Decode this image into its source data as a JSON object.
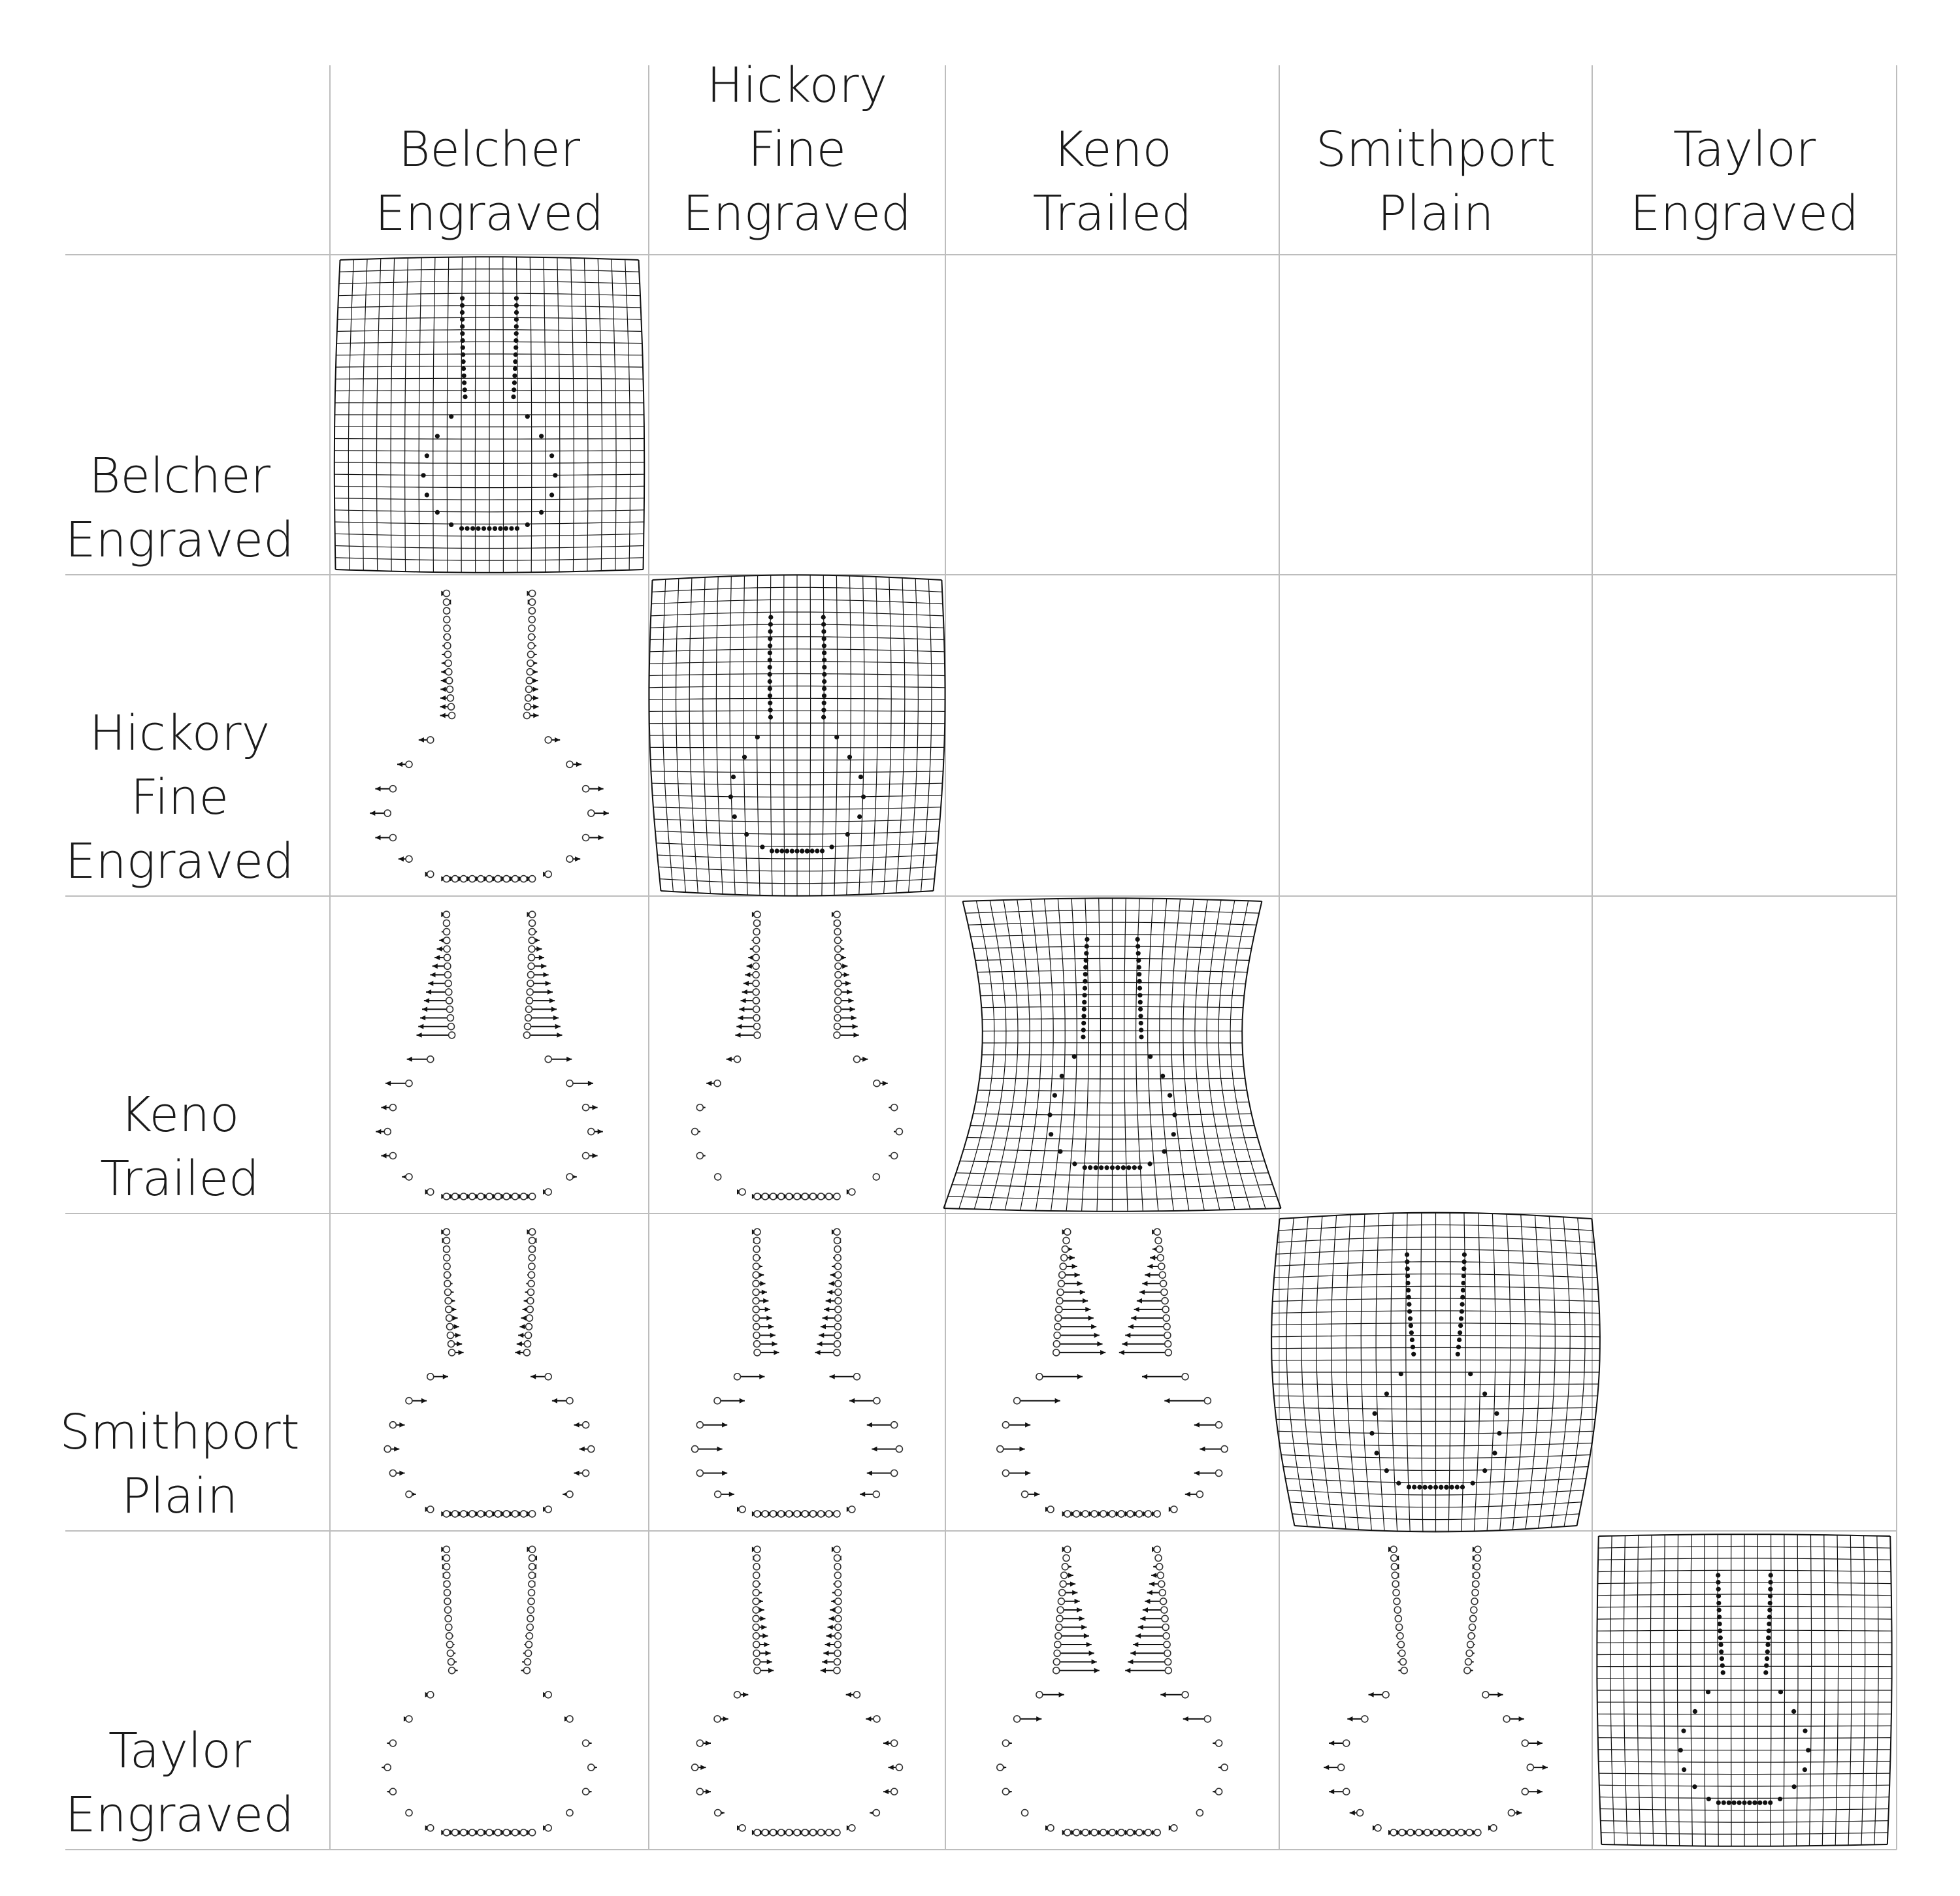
{
  "types": [
    {
      "lines": [
        "Belcher",
        "Engraved"
      ]
    },
    {
      "lines": [
        "Hickory",
        "Fine",
        "Engraved"
      ]
    },
    {
      "lines": [
        "Keno",
        "Trailed"
      ]
    },
    {
      "lines": [
        "Smithport",
        "Plain"
      ]
    },
    {
      "lines": [
        "Taylor",
        "Engraved"
      ]
    }
  ],
  "panels": {
    "diagonal": "deformation grid with landmark points",
    "lower": "landmark displacement vectors",
    "upper": "empty"
  },
  "colors": {
    "ink": "#111111",
    "grid_rule": "#bdbdbd",
    "background": "#ffffff"
  }
}
